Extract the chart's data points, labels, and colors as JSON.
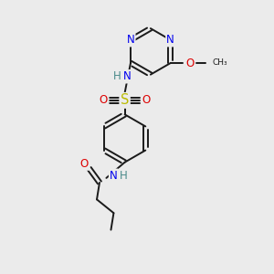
{
  "bg_color": "#ebebeb",
  "atom_colors": {
    "N": "#0000ee",
    "O": "#dd0000",
    "S": "#bbbb00",
    "C": "#1a1a1a",
    "H": "#4a8a8a"
  },
  "bond_color": "#1a1a1a",
  "lw": 1.4,
  "fs": 8.5,
  "fig_w": 3.0,
  "fig_h": 3.0,
  "dpi": 100,
  "xlim": [
    0,
    10
  ],
  "ylim": [
    0,
    10
  ]
}
